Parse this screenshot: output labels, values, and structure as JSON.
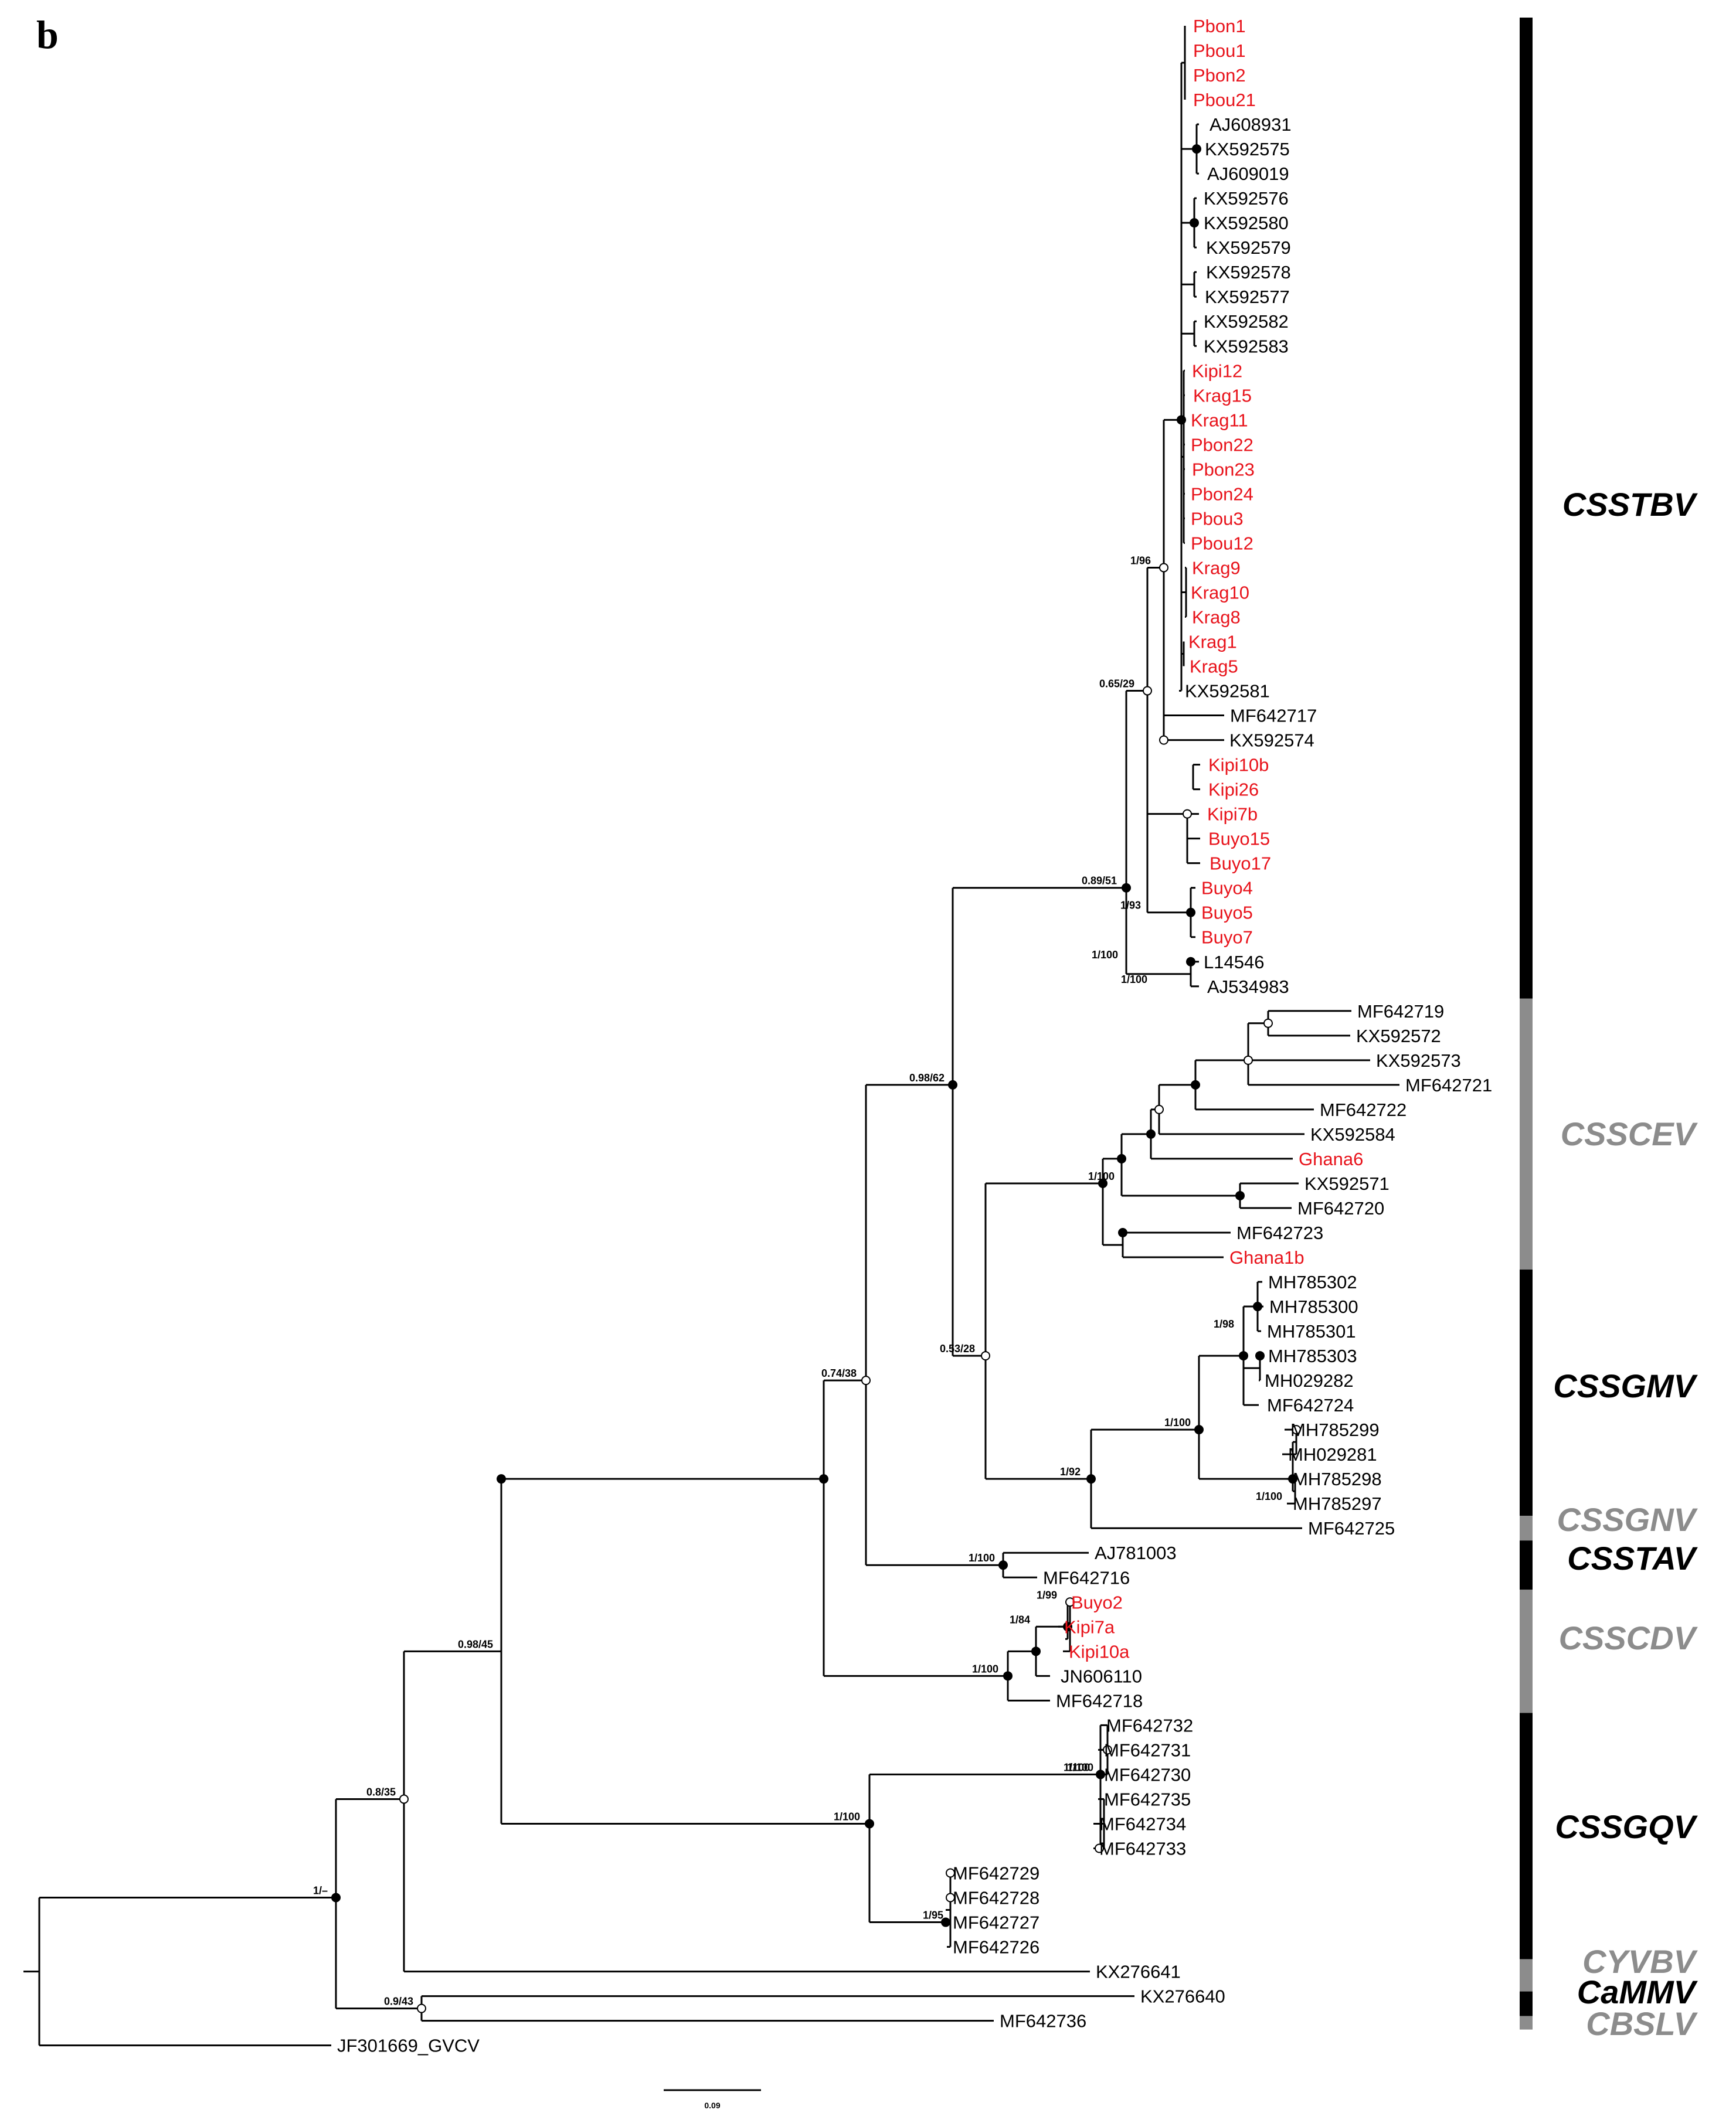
{
  "panel_label": "b",
  "scale_bar_label": "0.09",
  "colors": {
    "highlight": "#e8131b",
    "reference": "#000000",
    "branch": "#000000",
    "clade_bar_black": "#000000",
    "clade_bar_gray": "#8c8c8c"
  },
  "leaves": [
    {
      "label": "Pbon1",
      "highlight": true
    },
    {
      "label": "Pbou1",
      "highlight": true
    },
    {
      "label": "Pbon2",
      "highlight": true
    },
    {
      "label": "Pbou21",
      "highlight": true
    },
    {
      "label": "AJ608931",
      "highlight": false
    },
    {
      "label": "KX592575",
      "highlight": false
    },
    {
      "label": "AJ609019",
      "highlight": false
    },
    {
      "label": "KX592576",
      "highlight": false
    },
    {
      "label": "KX592580",
      "highlight": false
    },
    {
      "label": "KX592579",
      "highlight": false
    },
    {
      "label": "KX592578",
      "highlight": false
    },
    {
      "label": "KX592577",
      "highlight": false
    },
    {
      "label": "KX592582",
      "highlight": false
    },
    {
      "label": "KX592583",
      "highlight": false
    },
    {
      "label": "Kipi12",
      "highlight": true
    },
    {
      "label": "Krag15",
      "highlight": true
    },
    {
      "label": "Krag11",
      "highlight": true
    },
    {
      "label": "Pbon22",
      "highlight": true
    },
    {
      "label": "Pbon23",
      "highlight": true
    },
    {
      "label": "Pbon24",
      "highlight": true
    },
    {
      "label": "Pbou3",
      "highlight": true
    },
    {
      "label": "Pbou12",
      "highlight": true
    },
    {
      "label": "Krag9",
      "highlight": true
    },
    {
      "label": "Krag10",
      "highlight": true
    },
    {
      "label": "Krag8",
      "highlight": true
    },
    {
      "label": "Krag1",
      "highlight": true
    },
    {
      "label": "Krag5",
      "highlight": true
    },
    {
      "label": "KX592581",
      "highlight": false
    },
    {
      "label": "MF642717",
      "highlight": false
    },
    {
      "label": "KX592574",
      "highlight": false
    },
    {
      "label": "Kipi10b",
      "highlight": true
    },
    {
      "label": "Kipi26",
      "highlight": true
    },
    {
      "label": "Kipi7b",
      "highlight": true
    },
    {
      "label": "Buyo15",
      "highlight": true
    },
    {
      "label": "Buyo17",
      "highlight": true
    },
    {
      "label": "Buyo4",
      "highlight": true
    },
    {
      "label": "Buyo5",
      "highlight": true
    },
    {
      "label": "Buyo7",
      "highlight": true
    },
    {
      "label": "L14546",
      "highlight": false
    },
    {
      "label": "AJ534983",
      "highlight": false
    },
    {
      "label": "MF642719",
      "highlight": false
    },
    {
      "label": "KX592572",
      "highlight": false
    },
    {
      "label": "KX592573",
      "highlight": false
    },
    {
      "label": "MF642721",
      "highlight": false
    },
    {
      "label": "MF642722",
      "highlight": false
    },
    {
      "label": "KX592584",
      "highlight": false
    },
    {
      "label": "Ghana6",
      "highlight": true
    },
    {
      "label": "KX592571",
      "highlight": false
    },
    {
      "label": "MF642720",
      "highlight": false
    },
    {
      "label": "MF642723",
      "highlight": false
    },
    {
      "label": "Ghana1b",
      "highlight": true
    },
    {
      "label": "MH785302",
      "highlight": false
    },
    {
      "label": "MH785300",
      "highlight": false
    },
    {
      "label": "MH785301",
      "highlight": false
    },
    {
      "label": "MH785303",
      "highlight": false
    },
    {
      "label": "MH029282",
      "highlight": false
    },
    {
      "label": "MF642724",
      "highlight": false
    },
    {
      "label": "MH785299",
      "highlight": false
    },
    {
      "label": "MH029281",
      "highlight": false
    },
    {
      "label": "MH785298",
      "highlight": false
    },
    {
      "label": "MH785297",
      "highlight": false
    },
    {
      "label": "MF642725",
      "highlight": false
    },
    {
      "label": "AJ781003",
      "highlight": false
    },
    {
      "label": "MF642716",
      "highlight": false
    },
    {
      "label": "Buyo2",
      "highlight": true
    },
    {
      "label": "Kipi7a",
      "highlight": true
    },
    {
      "label": "Kipi10a",
      "highlight": true
    },
    {
      "label": "JN606110",
      "highlight": false
    },
    {
      "label": "MF642718",
      "highlight": false
    },
    {
      "label": "MF642732",
      "highlight": false
    },
    {
      "label": "MF642731",
      "highlight": false
    },
    {
      "label": "MF642730",
      "highlight": false
    },
    {
      "label": "MF642735",
      "highlight": false
    },
    {
      "label": "MF642734",
      "highlight": false
    },
    {
      "label": "MF642733",
      "highlight": false
    },
    {
      "label": "MF642729",
      "highlight": false
    },
    {
      "label": "MF642728",
      "highlight": false
    },
    {
      "label": "MF642727",
      "highlight": false
    },
    {
      "label": "MF642726",
      "highlight": false
    },
    {
      "label": "KX276641",
      "highlight": false
    },
    {
      "label": "KX276640",
      "highlight": false
    },
    {
      "label": "MF642736",
      "highlight": false
    },
    {
      "label": "JF301669_GVCV",
      "highlight": false
    }
  ],
  "support_values": [
    "1/96",
    "0.65/29",
    "0.89/51",
    "1/100",
    "1/93",
    "1/100",
    "1/100",
    "0.98/62",
    "0.53/28",
    "0.74/38",
    "1/98",
    "1/100",
    "1/100",
    "1/92",
    "1/100",
    "1/100",
    "1/99",
    "1/84",
    "1/100",
    "0.98/45",
    "1/100",
    "1/95",
    "1/100",
    "0.8/35",
    "1/–",
    "0.9/43"
  ],
  "clades": [
    {
      "name": "CSSTBV",
      "shade": "black"
    },
    {
      "name": "CSSCEV",
      "shade": "gray"
    },
    {
      "name": "CSSGMV",
      "shade": "black"
    },
    {
      "name": "CSSGNV",
      "shade": "gray"
    },
    {
      "name": "CSSTAV",
      "shade": "black"
    },
    {
      "name": "CSSCDV",
      "shade": "gray"
    },
    {
      "name": "CSSGQV",
      "shade": "black"
    },
    {
      "name": "CYVBV",
      "shade": "gray"
    },
    {
      "name": "CaMMV",
      "shade": "black"
    },
    {
      "name": "CBSLV",
      "shade": "gray"
    }
  ]
}
